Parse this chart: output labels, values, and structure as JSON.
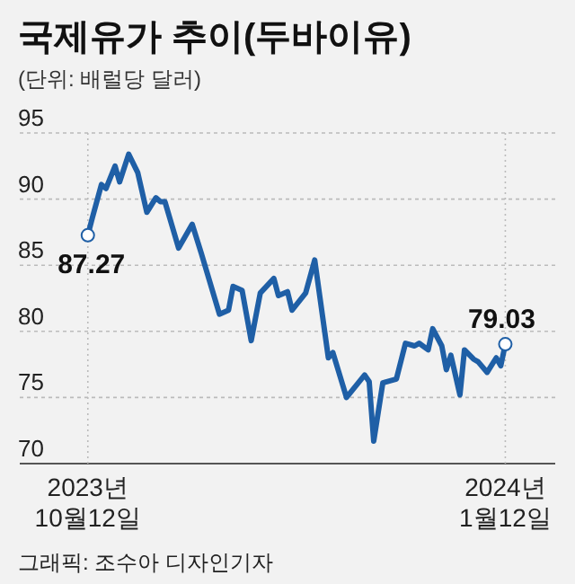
{
  "chart_data": {
    "type": "line",
    "title": "국제유가 추이(두바이유)",
    "subtitle": "(단위: 배럴당 달러)",
    "annotations": [
      "그래픽: 조수아 디자인기자"
    ],
    "x": [
      "2023-10-12",
      "2023-10-13",
      "2023-10-15",
      "2023-10-16",
      "2023-10-18",
      "2023-10-19",
      "2023-10-21",
      "2023-10-23",
      "2023-10-25",
      "2023-10-27",
      "2023-10-28",
      "2023-10-29",
      "2023-11-01",
      "2023-11-04",
      "2023-11-06",
      "2023-11-10",
      "2023-11-12",
      "2023-11-13",
      "2023-11-15",
      "2023-11-17",
      "2023-11-19",
      "2023-11-22",
      "2023-11-23",
      "2023-11-25",
      "2023-11-26",
      "2023-11-29",
      "2023-12-01",
      "2023-12-04",
      "2023-12-05",
      "2023-12-08",
      "2023-12-12",
      "2023-12-13",
      "2023-12-14",
      "2023-12-16",
      "2023-12-19",
      "2023-12-21",
      "2023-12-23",
      "2023-12-24",
      "2023-12-26",
      "2023-12-27",
      "2023-12-29",
      "2023-12-30",
      "2023-12-31",
      "2024-01-02",
      "2024-01-03",
      "2024-01-05",
      "2024-01-06",
      "2024-01-08",
      "2024-01-10",
      "2024-01-11",
      "2024-01-12"
    ],
    "series": [
      {
        "color": "#1f5fa6",
        "values": [
          87.27,
          88.6,
          91.1,
          90.8,
          92.5,
          91.3,
          93.4,
          92.0,
          89.0,
          90.1,
          89.8,
          89.8,
          86.3,
          88.1,
          85.9,
          81.3,
          81.6,
          83.4,
          83.1,
          79.3,
          82.9,
          84.0,
          82.7,
          83.0,
          81.6,
          82.9,
          85.4,
          78.0,
          78.4,
          75.0,
          76.7,
          76.2,
          71.7,
          76.1,
          76.4,
          79.1,
          78.9,
          79.1,
          78.6,
          80.2,
          78.9,
          77.1,
          78.2,
          75.2,
          78.6,
          77.9,
          77.7,
          76.9,
          78.0,
          77.4,
          79.03
        ],
        "value_labels": [
          "87.27",
          null,
          null,
          null,
          null,
          null,
          null,
          null,
          null,
          null,
          null,
          null,
          null,
          null,
          null,
          null,
          null,
          null,
          null,
          null,
          null,
          null,
          null,
          null,
          null,
          null,
          null,
          null,
          null,
          null,
          null,
          null,
          null,
          null,
          null,
          null,
          null,
          null,
          null,
          null,
          null,
          null,
          null,
          null,
          null,
          null,
          null,
          null,
          null,
          null,
          "79.03"
        ]
      }
    ],
    "xlim": [
      "2023-09-27",
      "2024-01-23"
    ],
    "xticks": [
      {
        "value": "2023-10-12",
        "label": "2023년 10월12일"
      },
      {
        "value": "2024-01-12",
        "label": "2024년 1월12일"
      }
    ],
    "ylim": [
      70,
      95
    ],
    "yticks": [
      70,
      75,
      80,
      85,
      90,
      95
    ],
    "grid": true
  }
}
